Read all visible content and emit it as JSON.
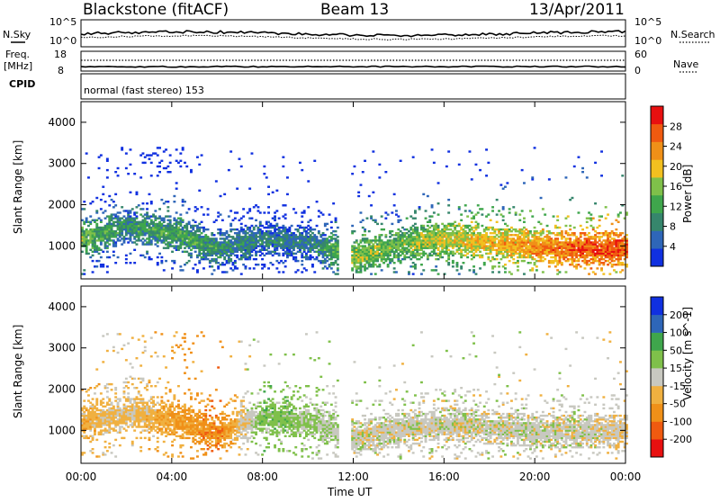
{
  "header": {
    "radar": "Blackstone (fitACF)",
    "beam": "Beam 13",
    "date": "13/Apr/2011",
    "cpid_text": "normal (fast stereo) 153"
  },
  "left_labels": {
    "nsky": "N.Sky",
    "freq": "Freq.",
    "mhz": "[MHz]",
    "cpid": "CPID"
  },
  "right_labels": {
    "nsearch": "N.Search",
    "nave": "Nave"
  },
  "noise_ticks_left": [
    "10^5",
    "10^0"
  ],
  "noise_ticks_right": [
    "10^5",
    "10^0"
  ],
  "freq_ticks": [
    "18",
    "8"
  ],
  "nave_ticks": [
    "60",
    "0"
  ],
  "colors": {
    "power": [
      "#1030e0",
      "#2e66b8",
      "#36866c",
      "#3fa64c",
      "#7fc04a",
      "#f2c020",
      "#f09018",
      "#f05a10",
      "#e81010"
    ],
    "velocity": [
      "#e81010",
      "#f05a10",
      "#f09018",
      "#f0b040",
      "#c8c8c0",
      "#7fc04a",
      "#3fa64c",
      "#2e66b8",
      "#1030e0"
    ]
  },
  "chart_data": [
    {
      "type": "heatmap",
      "title": "",
      "xlabel": "",
      "ylabel": "Slant Range [km]",
      "xlim": [
        "00:00",
        "24:00"
      ],
      "ylim": [
        200,
        4500
      ],
      "x_ticks": [
        "00:00",
        "04:00",
        "08:00",
        "12:00",
        "16:00",
        "20:00",
        "00:00"
      ],
      "y_ticks": [
        "1000",
        "2000",
        "3000",
        "4000"
      ],
      "colorbar": {
        "label": "Power [dB]",
        "ticks": [
          "28",
          "24",
          "20",
          "16",
          "12",
          "8",
          "4"
        ],
        "range": [
          0,
          30
        ]
      },
      "series": [
        {
          "time_h": [
            0.0,
            2.0,
            4.0,
            6.0,
            8.0,
            10.0,
            12.0,
            14.0,
            16.0,
            18.0,
            20.0,
            22.0,
            24.0
          ],
          "range_km": [
            1150,
            1450,
            1300,
            900,
            1150,
            1050,
            700,
            1000,
            1150,
            1050,
            950,
            900,
            900
          ],
          "value": [
            14,
            10,
            12,
            10,
            8,
            8,
            16,
            14,
            18,
            20,
            22,
            26,
            26
          ]
        }
      ]
    },
    {
      "type": "heatmap",
      "title": "",
      "xlabel": "Time UT",
      "ylabel": "Slant Range [km]",
      "xlim": [
        "00:00",
        "24:00"
      ],
      "ylim": [
        200,
        4500
      ],
      "x_ticks": [
        "00:00",
        "04:00",
        "08:00",
        "12:00",
        "16:00",
        "20:00",
        "00:00"
      ],
      "y_ticks": [
        "1000",
        "2000",
        "3000",
        "4000"
      ],
      "colorbar": {
        "label": "Velocity [m s^-1]",
        "ticks": [
          "200",
          "100",
          "50",
          "15",
          "-15",
          "-50",
          "-100",
          "-200"
        ],
        "range": [
          -250,
          250
        ]
      },
      "series": [
        {
          "time_h": [
            0.0,
            2.0,
            4.0,
            6.0,
            8.0,
            10.0,
            12.0,
            14.0,
            16.0,
            18.0,
            20.0,
            22.0,
            24.0
          ],
          "range_km": [
            1150,
            1400,
            1250,
            900,
            1300,
            1200,
            800,
            1000,
            1150,
            1050,
            950,
            950,
            950
          ],
          "value": [
            -60,
            -30,
            -80,
            -120,
            60,
            40,
            0,
            0,
            0,
            0,
            0,
            0,
            -20
          ]
        }
      ]
    }
  ]
}
